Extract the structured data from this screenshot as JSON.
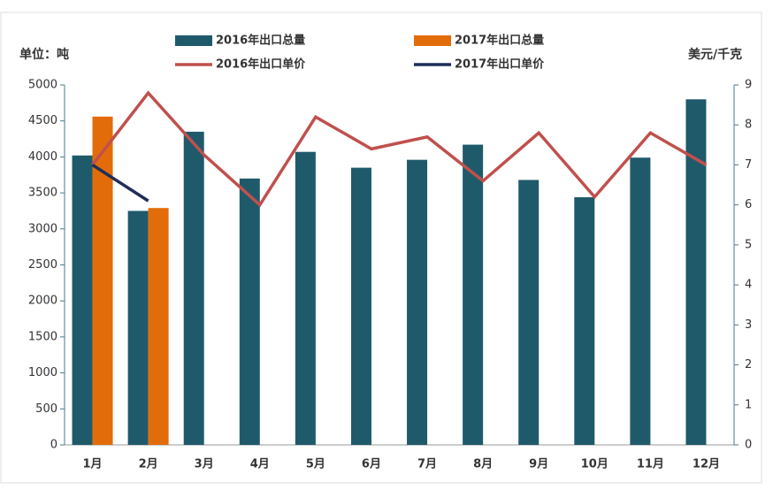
{
  "chart_data": {
    "type": "bar_line",
    "y_label": "单位：吨",
    "y2_label": "美元/千克",
    "categories": [
      "1月",
      "2月",
      "3月",
      "4月",
      "5月",
      "6月",
      "7月",
      "8月",
      "9月",
      "10月",
      "11月",
      "12月"
    ],
    "series": [
      {
        "name": "2016年出口总量",
        "type": "bar",
        "color": "#1f5a6b",
        "values": [
          4020,
          3250,
          4350,
          3700,
          4070,
          3850,
          3960,
          4170,
          3680,
          3440,
          3990,
          4800
        ]
      },
      {
        "name": "2017年出口总量",
        "type": "bar",
        "color": "#e36c0a",
        "values": [
          4560,
          3290,
          null,
          null,
          null,
          null,
          null,
          null,
          null,
          null,
          null,
          null
        ]
      },
      {
        "name": "2016年出口单价",
        "type": "line",
        "axis": "y2",
        "color": "#c0504d",
        "values": [
          7.0,
          8.8,
          7.25,
          6.0,
          8.2,
          7.4,
          7.7,
          6.6,
          7.8,
          6.2,
          7.8,
          7.0
        ]
      },
      {
        "name": "2017年出口单价",
        "type": "line",
        "axis": "y2",
        "color": "#1f2d5a",
        "values": [
          7.0,
          6.1,
          null,
          null,
          null,
          null,
          null,
          null,
          null,
          null,
          null,
          null
        ]
      }
    ],
    "ylim": [
      0,
      5000
    ],
    "yticks": [
      0,
      500,
      1000,
      1500,
      2000,
      2500,
      3000,
      3500,
      4000,
      4500,
      5000
    ],
    "y2lim": [
      0,
      9
    ],
    "y2ticks": [
      0,
      1,
      2,
      3,
      4,
      5,
      6,
      7,
      8,
      9
    ]
  }
}
